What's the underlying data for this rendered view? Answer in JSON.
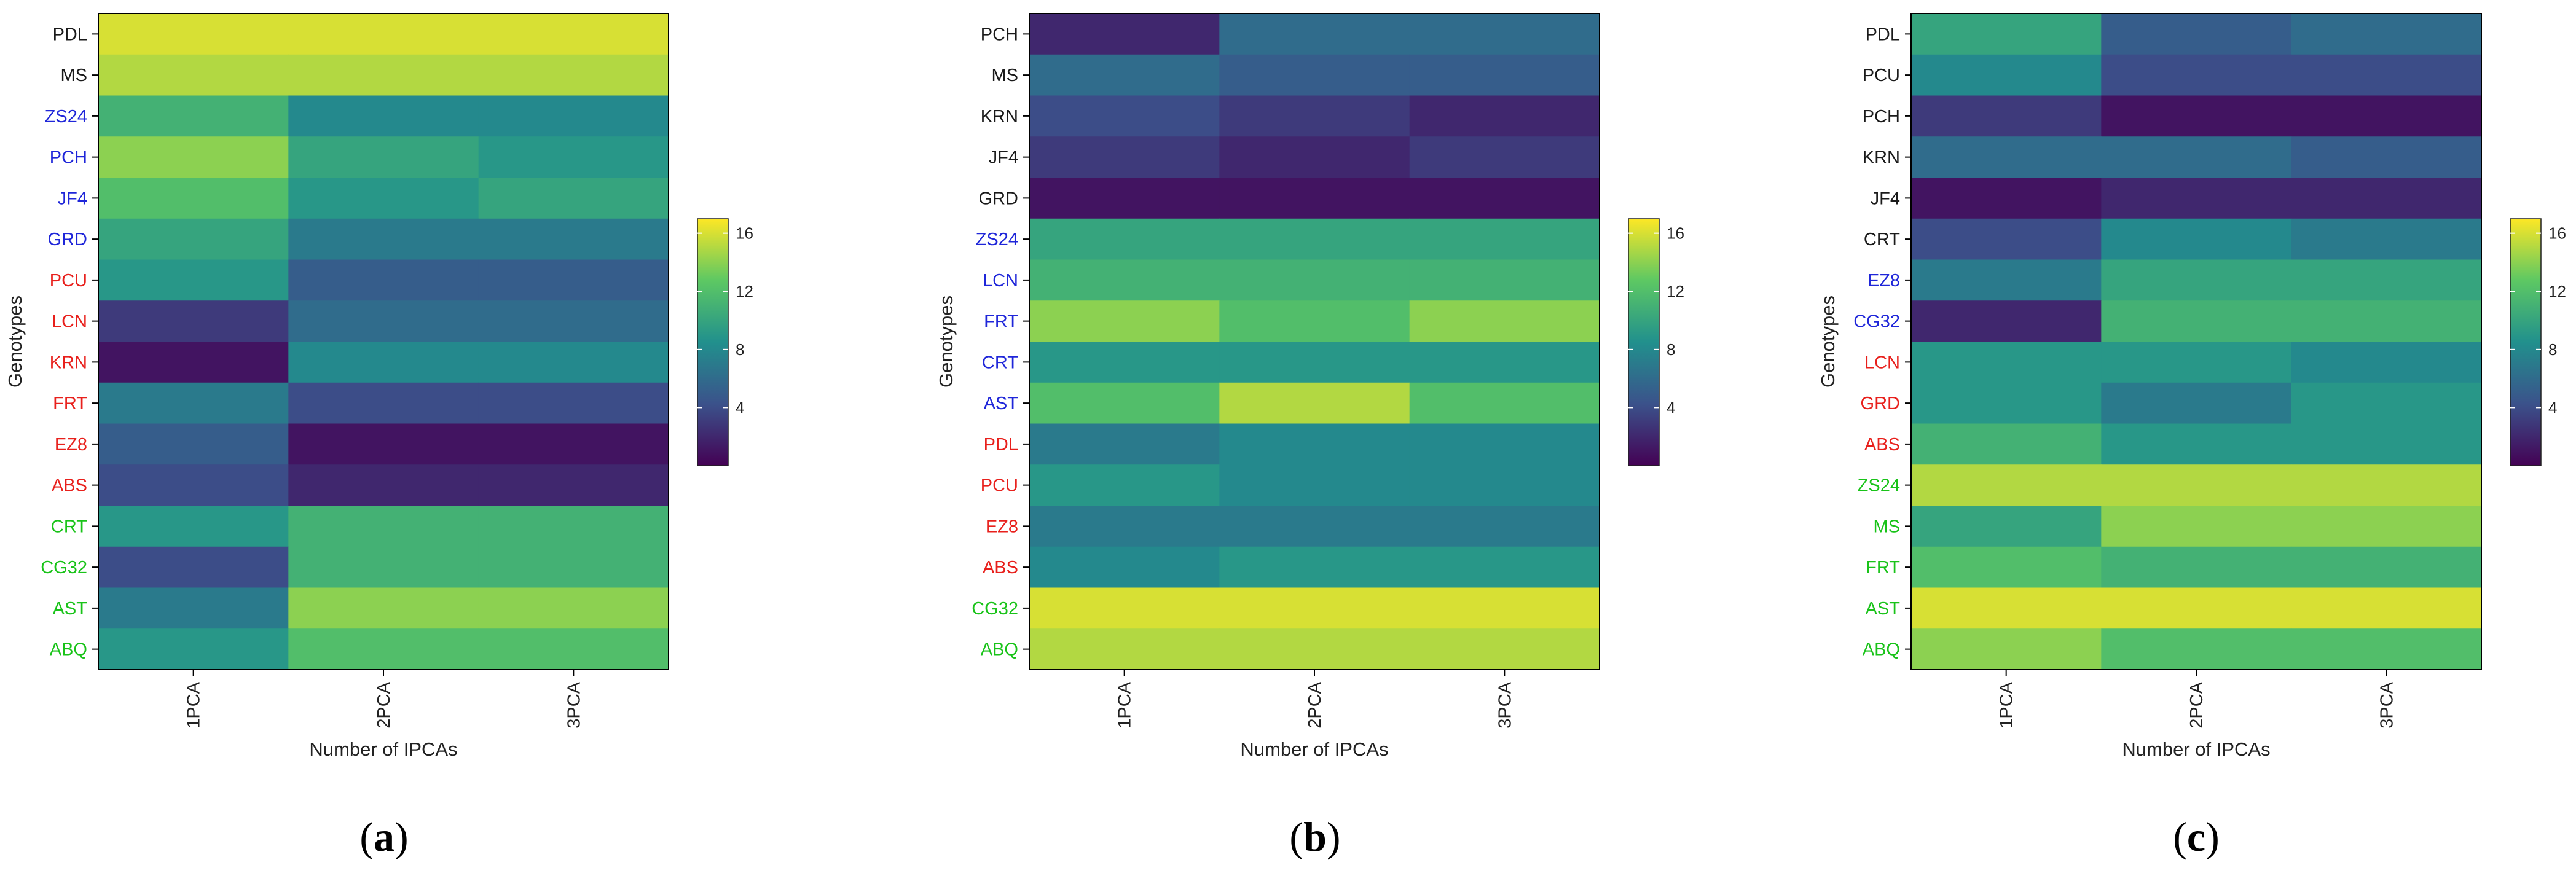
{
  "colors": {
    "group_blue": "#1f26d9",
    "group_red": "#e8201c",
    "group_green": "#19c319",
    "group_black": "#1a1a1a",
    "colormap": [
      "#440154",
      "#3b528b",
      "#21908d",
      "#5dc863",
      "#fde725"
    ]
  },
  "chart_data": [
    {
      "type": "heatmap",
      "panel_label": "a",
      "xlabel": "Number of IPCAs",
      "ylabel": "Genotypes",
      "columns": [
        "1PCA",
        "2PCA",
        "3PCA"
      ],
      "rows": [
        {
          "name": "PDL",
          "group": "black",
          "values": [
            16,
            16,
            16
          ]
        },
        {
          "name": "MS",
          "group": "black",
          "values": [
            15,
            15,
            15
          ]
        },
        {
          "name": "ZS24",
          "group": "blue",
          "values": [
            11,
            8,
            8
          ]
        },
        {
          "name": "PCH",
          "group": "blue",
          "values": [
            14,
            10,
            9
          ]
        },
        {
          "name": "JF4",
          "group": "blue",
          "values": [
            12,
            9,
            10
          ]
        },
        {
          "name": "GRD",
          "group": "blue",
          "values": [
            10,
            7,
            7
          ]
        },
        {
          "name": "PCU",
          "group": "red",
          "values": [
            9,
            5,
            5
          ]
        },
        {
          "name": "LCN",
          "group": "red",
          "values": [
            3,
            6,
            6
          ]
        },
        {
          "name": "KRN",
          "group": "red",
          "values": [
            1,
            8,
            8
          ]
        },
        {
          "name": "FRT",
          "group": "red",
          "values": [
            7,
            4,
            4
          ]
        },
        {
          "name": "EZ8",
          "group": "red",
          "values": [
            5,
            1,
            1
          ]
        },
        {
          "name": "ABS",
          "group": "red",
          "values": [
            4,
            2,
            2
          ]
        },
        {
          "name": "CRT",
          "group": "green",
          "values": [
            9,
            11,
            11
          ]
        },
        {
          "name": "CG32",
          "group": "green",
          "values": [
            4,
            11,
            11
          ]
        },
        {
          "name": "AST",
          "group": "green",
          "values": [
            7,
            14,
            14
          ]
        },
        {
          "name": "ABQ",
          "group": "green",
          "values": [
            9,
            12,
            12
          ]
        }
      ],
      "colorbar": {
        "min": 0,
        "max": 17,
        "ticks": [
          4,
          8,
          12,
          16
        ]
      }
    },
    {
      "type": "heatmap",
      "panel_label": "b",
      "xlabel": "Number of IPCAs",
      "ylabel": "Genotypes",
      "columns": [
        "1PCA",
        "2PCA",
        "3PCA"
      ],
      "rows": [
        {
          "name": "PCH",
          "group": "black",
          "values": [
            2,
            6,
            6
          ]
        },
        {
          "name": "MS",
          "group": "black",
          "values": [
            6,
            5,
            5
          ]
        },
        {
          "name": "KRN",
          "group": "black",
          "values": [
            4,
            3,
            2
          ]
        },
        {
          "name": "JF4",
          "group": "black",
          "values": [
            3,
            2,
            3
          ]
        },
        {
          "name": "GRD",
          "group": "black",
          "values": [
            1,
            1,
            1
          ]
        },
        {
          "name": "ZS24",
          "group": "blue",
          "values": [
            10,
            10,
            10
          ]
        },
        {
          "name": "LCN",
          "group": "blue",
          "values": [
            11,
            11,
            11
          ]
        },
        {
          "name": "FRT",
          "group": "blue",
          "values": [
            14,
            12,
            14
          ]
        },
        {
          "name": "CRT",
          "group": "blue",
          "values": [
            9,
            9,
            9
          ]
        },
        {
          "name": "AST",
          "group": "blue",
          "values": [
            12,
            15,
            12
          ]
        },
        {
          "name": "PDL",
          "group": "red",
          "values": [
            7,
            8,
            8
          ]
        },
        {
          "name": "PCU",
          "group": "red",
          "values": [
            9,
            8,
            8
          ]
        },
        {
          "name": "EZ8",
          "group": "red",
          "values": [
            7,
            7,
            7
          ]
        },
        {
          "name": "ABS",
          "group": "red",
          "values": [
            8,
            9,
            9
          ]
        },
        {
          "name": "CG32",
          "group": "green",
          "values": [
            16,
            16,
            16
          ]
        },
        {
          "name": "ABQ",
          "group": "green",
          "values": [
            15,
            15,
            15
          ]
        }
      ],
      "colorbar": {
        "min": 0,
        "max": 17,
        "ticks": [
          4,
          8,
          12,
          16
        ]
      }
    },
    {
      "type": "heatmap",
      "panel_label": "c",
      "xlabel": "Number of IPCAs",
      "ylabel": "Genotypes",
      "columns": [
        "1PCA",
        "2PCA",
        "3PCA"
      ],
      "rows": [
        {
          "name": "PDL",
          "group": "black",
          "values": [
            10,
            5,
            6
          ]
        },
        {
          "name": "PCU",
          "group": "black",
          "values": [
            8,
            4,
            4
          ]
        },
        {
          "name": "PCH",
          "group": "black",
          "values": [
            3,
            1,
            1
          ]
        },
        {
          "name": "KRN",
          "group": "black",
          "values": [
            6,
            6,
            5
          ]
        },
        {
          "name": "JF4",
          "group": "black",
          "values": [
            1,
            2,
            2
          ]
        },
        {
          "name": "CRT",
          "group": "black",
          "values": [
            4,
            8,
            7
          ]
        },
        {
          "name": "EZ8",
          "group": "blue",
          "values": [
            7,
            10,
            10
          ]
        },
        {
          "name": "CG32",
          "group": "blue",
          "values": [
            2,
            11,
            11
          ]
        },
        {
          "name": "LCN",
          "group": "red",
          "values": [
            9,
            9,
            8
          ]
        },
        {
          "name": "GRD",
          "group": "red",
          "values": [
            9,
            7,
            9
          ]
        },
        {
          "name": "ABS",
          "group": "red",
          "values": [
            11,
            9,
            9
          ]
        },
        {
          "name": "ZS24",
          "group": "green",
          "values": [
            15,
            15,
            15
          ]
        },
        {
          "name": "MS",
          "group": "green",
          "values": [
            10,
            14,
            14
          ]
        },
        {
          "name": "FRT",
          "group": "green",
          "values": [
            12,
            11,
            11
          ]
        },
        {
          "name": "AST",
          "group": "green",
          "values": [
            16,
            16,
            16
          ]
        },
        {
          "name": "ABQ",
          "group": "green",
          "values": [
            14,
            12,
            12
          ]
        }
      ],
      "colorbar": {
        "min": 0,
        "max": 17,
        "ticks": [
          4,
          8,
          12,
          16
        ]
      }
    }
  ]
}
